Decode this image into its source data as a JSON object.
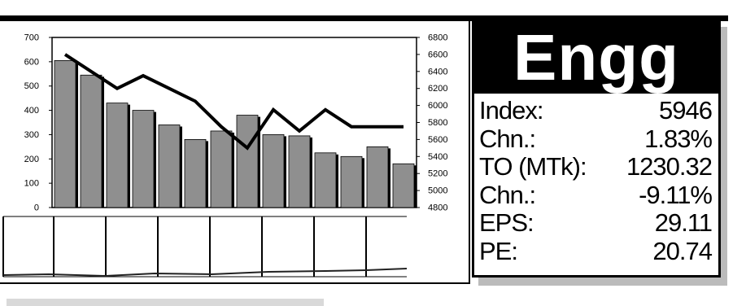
{
  "chart_data": {
    "type": "bar",
    "title": "",
    "xlabel": "",
    "ylabel": "",
    "ylim": [
      0,
      700
    ],
    "y2lim": [
      4800,
      6800
    ],
    "yticks": [
      "0",
      "100",
      "200",
      "300",
      "400",
      "500",
      "600",
      "700"
    ],
    "y2ticks": [
      "4800",
      "5000",
      "5200",
      "5400",
      "5600",
      "5800",
      "6000",
      "6200",
      "6400",
      "6600",
      "6800"
    ],
    "series": [
      {
        "type": "bar",
        "axis": "left",
        "color": "#8f8f8f",
        "values": [
          605,
          545,
          430,
          400,
          340,
          280,
          315,
          380,
          300,
          295,
          225,
          210,
          250,
          180
        ]
      },
      {
        "type": "line",
        "axis": "right",
        "color": "#000000",
        "values": [
          6600,
          6400,
          6200,
          6350,
          6200,
          6050,
          5750,
          5500,
          5950,
          5700,
          5950,
          5750,
          5750,
          5750
        ]
      }
    ]
  },
  "sector": {
    "name": "Engg"
  },
  "stats": [
    {
      "label": "Index:",
      "value": "5946"
    },
    {
      "label": "Chn.:",
      "value": "1.83%"
    },
    {
      "label": "TO (MTk):",
      "value": "1230.32"
    },
    {
      "label": "Chn.:",
      "value": "-9.11%"
    },
    {
      "label": "EPS:",
      "value": "29.11"
    },
    {
      "label": "PE:",
      "value": "20.74"
    }
  ]
}
